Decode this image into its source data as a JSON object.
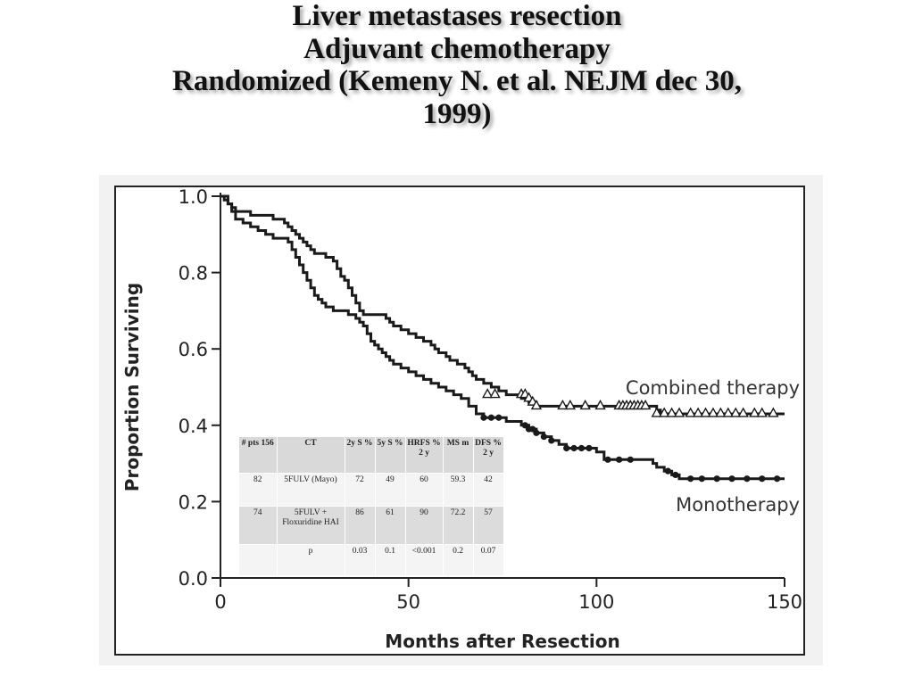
{
  "title_lines": [
    "Liver metastases resection",
    "Adjuvant chemotherapy",
    "Randomized (Kemeny N. et al. NEJM dec 30,",
    "1999)"
  ],
  "chart_data": {
    "type": "line",
    "title": "",
    "xlabel": "Months after Resection",
    "ylabel": "Proportion Surviving",
    "xlim": [
      0,
      150
    ],
    "ylim": [
      0,
      1
    ],
    "x_ticks": [
      0,
      50,
      100,
      150
    ],
    "y_ticks": [
      "0.0",
      "0.2",
      "0.4",
      "0.6",
      "0.8",
      "1.0"
    ],
    "grid": false,
    "series": [
      {
        "name": "Combined therapy",
        "color": "#1a1a1a",
        "censor_marker": "triangle",
        "points": [
          [
            0,
            1.0
          ],
          [
            1,
            0.99
          ],
          [
            2,
            0.98
          ],
          [
            3,
            0.97
          ],
          [
            4,
            0.96
          ],
          [
            6,
            0.96
          ],
          [
            8,
            0.95
          ],
          [
            12,
            0.95
          ],
          [
            14,
            0.94
          ],
          [
            16,
            0.94
          ],
          [
            17,
            0.93
          ],
          [
            18,
            0.92
          ],
          [
            19,
            0.91
          ],
          [
            20,
            0.9
          ],
          [
            21,
            0.89
          ],
          [
            22,
            0.88
          ],
          [
            23,
            0.87
          ],
          [
            24,
            0.86
          ],
          [
            25,
            0.85
          ],
          [
            28,
            0.84
          ],
          [
            30,
            0.83
          ],
          [
            31,
            0.81
          ],
          [
            32,
            0.79
          ],
          [
            33,
            0.78
          ],
          [
            34,
            0.76
          ],
          [
            35,
            0.74
          ],
          [
            36,
            0.72
          ],
          [
            37,
            0.7
          ],
          [
            38,
            0.69
          ],
          [
            43,
            0.69
          ],
          [
            44,
            0.68
          ],
          [
            45,
            0.67
          ],
          [
            46,
            0.66
          ],
          [
            48,
            0.65
          ],
          [
            50,
            0.64
          ],
          [
            52,
            0.63
          ],
          [
            54,
            0.62
          ],
          [
            56,
            0.61
          ],
          [
            57,
            0.6
          ],
          [
            58,
            0.59
          ],
          [
            60,
            0.58
          ],
          [
            61,
            0.57
          ],
          [
            63,
            0.56
          ],
          [
            65,
            0.55
          ],
          [
            66,
            0.54
          ],
          [
            67,
            0.53
          ],
          [
            68,
            0.52
          ],
          [
            70,
            0.51
          ],
          [
            72,
            0.5
          ],
          [
            74,
            0.49
          ],
          [
            76,
            0.48
          ],
          [
            78,
            0.48
          ],
          [
            80,
            0.47
          ],
          [
            82,
            0.46
          ],
          [
            84,
            0.45
          ],
          [
            86,
            0.45
          ],
          [
            90,
            0.45
          ],
          [
            95,
            0.45
          ],
          [
            105,
            0.45
          ],
          [
            115,
            0.45
          ],
          [
            116,
            0.44
          ],
          [
            117,
            0.43
          ],
          [
            120,
            0.43
          ],
          [
            130,
            0.43
          ],
          [
            140,
            0.43
          ],
          [
            150,
            0.43
          ]
        ],
        "censored": [
          [
            71,
            0.48
          ],
          [
            73,
            0.48
          ],
          [
            80,
            0.48
          ],
          [
            81,
            0.48
          ],
          [
            82,
            0.47
          ],
          [
            83,
            0.46
          ],
          [
            84,
            0.45
          ],
          [
            91,
            0.45
          ],
          [
            93,
            0.45
          ],
          [
            97,
            0.45
          ],
          [
            101,
            0.45
          ],
          [
            106,
            0.45
          ],
          [
            107,
            0.45
          ],
          [
            108,
            0.45
          ],
          [
            109,
            0.45
          ],
          [
            110,
            0.45
          ],
          [
            111,
            0.45
          ],
          [
            112,
            0.45
          ],
          [
            113,
            0.45
          ],
          [
            116,
            0.43
          ],
          [
            118,
            0.43
          ],
          [
            120,
            0.43
          ],
          [
            122,
            0.43
          ],
          [
            125,
            0.43
          ],
          [
            127,
            0.43
          ],
          [
            129,
            0.43
          ],
          [
            131,
            0.43
          ],
          [
            133,
            0.43
          ],
          [
            135,
            0.43
          ],
          [
            137,
            0.43
          ],
          [
            139,
            0.43
          ],
          [
            142,
            0.43
          ],
          [
            144,
            0.43
          ],
          [
            147,
            0.43
          ]
        ]
      },
      {
        "name": "Monotherapy",
        "color": "#1a1a1a",
        "censor_marker": "circle",
        "points": [
          [
            0,
            1.0
          ],
          [
            2,
            0.98
          ],
          [
            3,
            0.96
          ],
          [
            4,
            0.94
          ],
          [
            6,
            0.93
          ],
          [
            8,
            0.92
          ],
          [
            10,
            0.91
          ],
          [
            12,
            0.9
          ],
          [
            14,
            0.89
          ],
          [
            16,
            0.89
          ],
          [
            18,
            0.88
          ],
          [
            19,
            0.86
          ],
          [
            20,
            0.84
          ],
          [
            21,
            0.82
          ],
          [
            22,
            0.8
          ],
          [
            23,
            0.78
          ],
          [
            24,
            0.76
          ],
          [
            25,
            0.74
          ],
          [
            26,
            0.73
          ],
          [
            27,
            0.72
          ],
          [
            28,
            0.71
          ],
          [
            30,
            0.7
          ],
          [
            34,
            0.69
          ],
          [
            36,
            0.68
          ],
          [
            37,
            0.67
          ],
          [
            38,
            0.66
          ],
          [
            39,
            0.64
          ],
          [
            40,
            0.62
          ],
          [
            41,
            0.61
          ],
          [
            42,
            0.6
          ],
          [
            43,
            0.59
          ],
          [
            44,
            0.58
          ],
          [
            45,
            0.57
          ],
          [
            46,
            0.56
          ],
          [
            48,
            0.55
          ],
          [
            50,
            0.54
          ],
          [
            52,
            0.53
          ],
          [
            54,
            0.52
          ],
          [
            56,
            0.51
          ],
          [
            58,
            0.5
          ],
          [
            60,
            0.49
          ],
          [
            62,
            0.48
          ],
          [
            64,
            0.47
          ],
          [
            66,
            0.45
          ],
          [
            68,
            0.43
          ],
          [
            70,
            0.42
          ],
          [
            74,
            0.42
          ],
          [
            76,
            0.41
          ],
          [
            79,
            0.41
          ],
          [
            80,
            0.4
          ],
          [
            82,
            0.39
          ],
          [
            84,
            0.38
          ],
          [
            86,
            0.37
          ],
          [
            88,
            0.36
          ],
          [
            90,
            0.35
          ],
          [
            92,
            0.34
          ],
          [
            98,
            0.34
          ],
          [
            100,
            0.33
          ],
          [
            102,
            0.31
          ],
          [
            106,
            0.31
          ],
          [
            112,
            0.31
          ],
          [
            115,
            0.3
          ],
          [
            116,
            0.29
          ],
          [
            118,
            0.28
          ],
          [
            120,
            0.27
          ],
          [
            122,
            0.26
          ],
          [
            130,
            0.26
          ],
          [
            140,
            0.26
          ],
          [
            150,
            0.26
          ]
        ],
        "censored": [
          [
            70,
            0.42
          ],
          [
            72,
            0.42
          ],
          [
            74,
            0.42
          ],
          [
            81,
            0.4
          ],
          [
            82,
            0.39
          ],
          [
            83,
            0.39
          ],
          [
            84,
            0.38
          ],
          [
            86,
            0.37
          ],
          [
            88,
            0.36
          ],
          [
            92,
            0.34
          ],
          [
            94,
            0.34
          ],
          [
            96,
            0.34
          ],
          [
            98,
            0.34
          ],
          [
            103,
            0.31
          ],
          [
            106,
            0.31
          ],
          [
            109,
            0.31
          ],
          [
            119,
            0.28
          ],
          [
            121,
            0.27
          ],
          [
            125,
            0.26
          ],
          [
            128,
            0.26
          ],
          [
            132,
            0.26
          ],
          [
            136,
            0.26
          ],
          [
            140,
            0.26
          ],
          [
            144,
            0.26
          ],
          [
            148,
            0.26
          ]
        ]
      }
    ],
    "curve_labels": [
      "Combined therapy",
      "Monotherapy"
    ]
  },
  "table": {
    "headers": [
      "# pts 156",
      "CT",
      "2y S %",
      "5y S %",
      "HRFS % 2 y",
      "MS m",
      "DFS % 2 y"
    ],
    "rows": [
      [
        "82",
        "5FULV (Mayo)",
        "72",
        "49",
        "60",
        "59.3",
        "42"
      ],
      [
        "74",
        "5FULV + Floxuridine HAI",
        "86",
        "61",
        "90",
        "72.2",
        "57"
      ],
      [
        "",
        "p",
        "0.03",
        "0.1",
        "<0.001",
        "0.2",
        "0.07"
      ]
    ]
  }
}
